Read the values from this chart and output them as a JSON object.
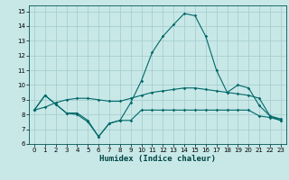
{
  "xlabel": "Humidex (Indice chaleur)",
  "background_color": "#c8e8e8",
  "grid_color": "#a8cece",
  "line_color": "#006868",
  "xlim": [
    -0.5,
    23.5
  ],
  "ylim": [
    6,
    15.4
  ],
  "xticks": [
    0,
    1,
    2,
    3,
    4,
    5,
    6,
    7,
    8,
    9,
    10,
    11,
    12,
    13,
    14,
    15,
    16,
    17,
    18,
    19,
    20,
    21,
    22,
    23
  ],
  "yticks": [
    6,
    7,
    8,
    9,
    10,
    11,
    12,
    13,
    14,
    15
  ],
  "line1_x": [
    0,
    1,
    2,
    3,
    4,
    5,
    6,
    7,
    8,
    9,
    10,
    11,
    12,
    13,
    14,
    15,
    16,
    17,
    18,
    19,
    20,
    21,
    22,
    23
  ],
  "line1_y": [
    8.3,
    9.3,
    8.7,
    8.1,
    8.0,
    7.5,
    6.5,
    7.4,
    7.6,
    7.6,
    8.3,
    8.3,
    8.3,
    8.3,
    8.3,
    8.3,
    8.3,
    8.3,
    8.3,
    8.3,
    8.3,
    7.9,
    7.8,
    7.6
  ],
  "line2_x": [
    0,
    1,
    2,
    3,
    4,
    5,
    6,
    7,
    8,
    9,
    10,
    11,
    12,
    13,
    14,
    15,
    16,
    17,
    18,
    19,
    20,
    21,
    22,
    23
  ],
  "line2_y": [
    8.3,
    9.3,
    8.7,
    8.1,
    8.1,
    7.6,
    6.5,
    7.4,
    7.6,
    8.8,
    10.3,
    12.2,
    13.3,
    14.1,
    14.85,
    14.7,
    13.3,
    11.0,
    9.5,
    10.0,
    9.8,
    8.6,
    7.9,
    7.6
  ],
  "line3_x": [
    0,
    1,
    2,
    3,
    4,
    5,
    6,
    7,
    8,
    9,
    10,
    11,
    12,
    13,
    14,
    15,
    16,
    17,
    18,
    19,
    20,
    21,
    22,
    23
  ],
  "line3_y": [
    8.3,
    8.5,
    8.8,
    9.0,
    9.1,
    9.1,
    9.0,
    8.9,
    8.9,
    9.1,
    9.3,
    9.5,
    9.6,
    9.7,
    9.8,
    9.8,
    9.7,
    9.6,
    9.5,
    9.4,
    9.3,
    9.1,
    7.9,
    7.7
  ]
}
